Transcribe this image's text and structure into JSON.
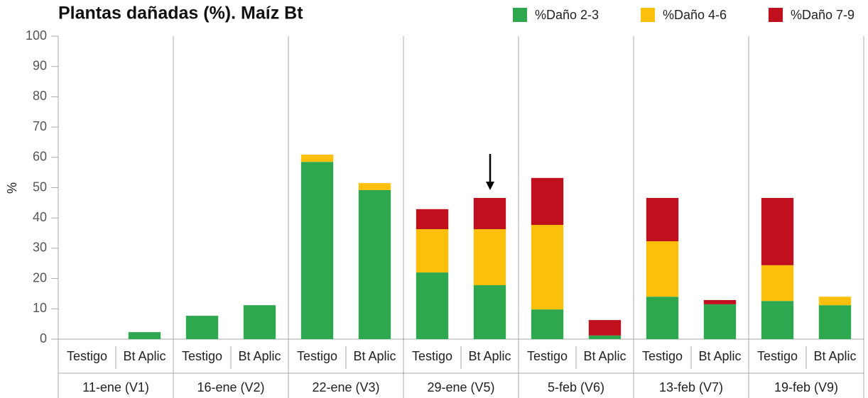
{
  "chart_data": {
    "type": "stacked_bar",
    "title": "Plantas dañadas (%). Maíz Bt",
    "y_label": "%",
    "categories": [
      "Testigo",
      "Bt Aplic",
      "Testigo",
      "Bt Aplic",
      "Testigo",
      "Bt Aplic",
      "Testigo",
      "Bt Aplic",
      "Testigo",
      "Bt Aplic",
      "Testigo",
      "Bt Aplic",
      "Testigo",
      "Bt Aplic"
    ],
    "groups": [
      "11-ene (V1)",
      "16-ene (V2)",
      "22-ene (V3)",
      "29-ene (V5)",
      "5-feb (V6)",
      "13-feb (V7)",
      "19-feb (V9)"
    ],
    "series": [
      {
        "name": "%Daño 2-3",
        "color": "#2ea84f",
        "values": [
          0,
          2.3,
          7.7,
          11.2,
          58.5,
          49.2,
          22,
          17.8,
          9.8,
          1.2,
          14,
          11.5,
          12.6,
          11.2
        ]
      },
      {
        "name": "%Daño 4-6",
        "color": "#fbbf0c",
        "values": [
          0,
          0,
          0,
          0,
          2.4,
          2.3,
          14.3,
          18.5,
          27.9,
          0,
          18.3,
          0,
          11.8,
          2.8
        ]
      },
      {
        "name": "%Daño 7-9",
        "color": "#c0101e",
        "values": [
          0,
          0,
          0,
          0,
          0,
          0,
          6.6,
          10.3,
          15.5,
          5.1,
          14.3,
          1.4,
          22.2,
          0
        ]
      }
    ],
    "ylim": [
      0,
      100
    ],
    "yticks": [
      0,
      10,
      20,
      30,
      40,
      50,
      60,
      70,
      80,
      90,
      100
    ],
    "legend": "top-right"
  }
}
